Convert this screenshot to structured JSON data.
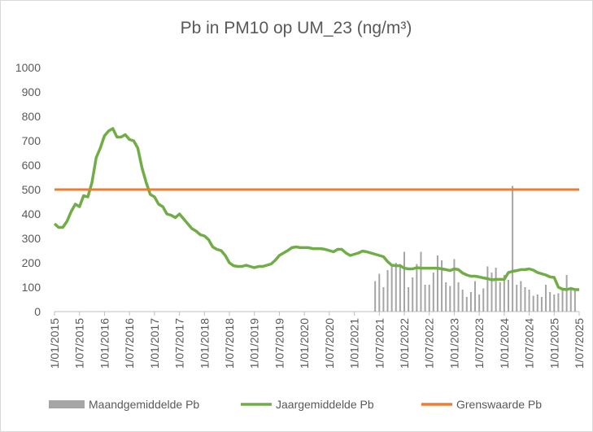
{
  "chart_data": {
    "type": "line",
    "title": "Pb in PM10 op UM_23 (ng/m³)",
    "ylim": [
      0,
      1000
    ],
    "yticks": [
      0,
      100,
      200,
      300,
      400,
      500,
      600,
      700,
      800,
      900,
      1000
    ],
    "xlim": [
      "2015-01-01",
      "2025-07-01"
    ],
    "xticks": [
      {
        "value": "2015-01-01",
        "label": "1/01/2015"
      },
      {
        "value": "2015-07-01",
        "label": "1/07/2015"
      },
      {
        "value": "2016-01-01",
        "label": "1/01/2016"
      },
      {
        "value": "2016-07-01",
        "label": "1/07/2016"
      },
      {
        "value": "2017-01-01",
        "label": "1/01/2017"
      },
      {
        "value": "2017-07-01",
        "label": "1/07/2017"
      },
      {
        "value": "2018-01-01",
        "label": "1/01/2018"
      },
      {
        "value": "2018-07-01",
        "label": "1/07/2018"
      },
      {
        "value": "2019-01-01",
        "label": "1/01/2019"
      },
      {
        "value": "2019-07-01",
        "label": "1/07/2019"
      },
      {
        "value": "2020-01-01",
        "label": "1/01/2020"
      },
      {
        "value": "2020-07-01",
        "label": "1/07/2020"
      },
      {
        "value": "2021-01-01",
        "label": "1/01/2021"
      },
      {
        "value": "2021-07-01",
        "label": "1/07/2021"
      },
      {
        "value": "2022-01-01",
        "label": "1/01/2022"
      },
      {
        "value": "2022-07-01",
        "label": "1/07/2022"
      },
      {
        "value": "2023-01-01",
        "label": "1/01/2023"
      },
      {
        "value": "2023-07-01",
        "label": "1/07/2023"
      },
      {
        "value": "2024-01-01",
        "label": "1/01/2024"
      },
      {
        "value": "2024-07-01",
        "label": "1/07/2024"
      },
      {
        "value": "2025-01-01",
        "label": "1/01/2025"
      },
      {
        "value": "2025-07-01",
        "label": "1/07/2025"
      }
    ],
    "series": [
      {
        "name": "Maandgemiddelde Pb",
        "type": "bar",
        "color": "#a5a5a5",
        "x": [
          "2021-06-01",
          "2021-07-01",
          "2021-08-01",
          "2021-09-01",
          "2021-10-01",
          "2021-11-01",
          "2021-12-01",
          "2022-01-01",
          "2022-02-01",
          "2022-03-01",
          "2022-04-01",
          "2022-05-01",
          "2022-06-01",
          "2022-07-01",
          "2022-08-01",
          "2022-09-01",
          "2022-10-01",
          "2022-11-01",
          "2022-12-01",
          "2023-01-01",
          "2023-02-01",
          "2023-03-01",
          "2023-04-01",
          "2023-05-01",
          "2023-06-01",
          "2023-07-01",
          "2023-08-01",
          "2023-09-01",
          "2023-10-01",
          "2023-11-01",
          "2023-12-01",
          "2024-01-01",
          "2024-02-01",
          "2024-03-01",
          "2024-04-01",
          "2024-05-01",
          "2024-06-01",
          "2024-07-01",
          "2024-08-01",
          "2024-09-01",
          "2024-10-01",
          "2024-11-01",
          "2024-12-01",
          "2025-01-01",
          "2025-02-01",
          "2025-03-01",
          "2025-04-01",
          "2025-05-01",
          "2025-06-01"
        ],
        "values": [
          125,
          155,
          100,
          170,
          185,
          200,
          195,
          245,
          100,
          140,
          195,
          245,
          110,
          110,
          160,
          230,
          210,
          120,
          105,
          215,
          120,
          90,
          60,
          80,
          125,
          70,
          95,
          185,
          160,
          180,
          120,
          150,
          130,
          515,
          110,
          125,
          100,
          90,
          65,
          70,
          60,
          110,
          80,
          70,
          75,
          90,
          150,
          100,
          85
        ]
      },
      {
        "name": "Jaargemiddelde Pb",
        "type": "line",
        "color": "#70ad47",
        "x": [
          "2015-01-01",
          "2015-02-01",
          "2015-03-01",
          "2015-04-01",
          "2015-05-01",
          "2015-06-01",
          "2015-07-01",
          "2015-08-01",
          "2015-09-01",
          "2015-10-01",
          "2015-11-01",
          "2015-12-01",
          "2016-01-01",
          "2016-02-01",
          "2016-03-01",
          "2016-04-01",
          "2016-05-01",
          "2016-06-01",
          "2016-07-01",
          "2016-08-01",
          "2016-09-01",
          "2016-10-01",
          "2016-11-01",
          "2016-12-01",
          "2017-01-01",
          "2017-02-01",
          "2017-03-01",
          "2017-04-01",
          "2017-05-01",
          "2017-06-01",
          "2017-07-01",
          "2017-08-01",
          "2017-09-01",
          "2017-10-01",
          "2017-11-01",
          "2017-12-01",
          "2018-01-01",
          "2018-02-01",
          "2018-03-01",
          "2018-04-01",
          "2018-05-01",
          "2018-06-01",
          "2018-07-01",
          "2018-08-01",
          "2018-09-01",
          "2018-10-01",
          "2018-11-01",
          "2018-12-01",
          "2019-01-01",
          "2019-02-01",
          "2019-03-01",
          "2019-04-01",
          "2019-05-01",
          "2019-06-01",
          "2019-07-01",
          "2019-08-01",
          "2019-09-01",
          "2019-10-01",
          "2019-11-01",
          "2019-12-01",
          "2020-01-01",
          "2020-02-01",
          "2020-03-01",
          "2020-04-01",
          "2020-05-01",
          "2020-06-01",
          "2020-07-01",
          "2020-08-01",
          "2020-09-01",
          "2020-10-01",
          "2020-11-01",
          "2020-12-01",
          "2021-01-01",
          "2021-02-01",
          "2021-03-01",
          "2021-04-01",
          "2021-05-01",
          "2021-06-01",
          "2021-07-01",
          "2021-08-01",
          "2021-09-01",
          "2021-10-01",
          "2021-11-01",
          "2021-12-01",
          "2022-01-01",
          "2022-02-01",
          "2022-03-01",
          "2022-04-01",
          "2022-05-01",
          "2022-06-01",
          "2022-07-01",
          "2022-08-01",
          "2022-09-01",
          "2022-10-01",
          "2022-11-01",
          "2022-12-01",
          "2023-01-01",
          "2023-02-01",
          "2023-03-01",
          "2023-04-01",
          "2023-05-01",
          "2023-06-01",
          "2023-07-01",
          "2023-08-01",
          "2023-09-01",
          "2023-10-01",
          "2023-11-01",
          "2023-12-01",
          "2024-01-01",
          "2024-02-01",
          "2024-03-01",
          "2024-04-01",
          "2024-05-01",
          "2024-06-01",
          "2024-07-01",
          "2024-08-01",
          "2024-09-01",
          "2024-10-01",
          "2024-11-01",
          "2024-12-01",
          "2025-01-01",
          "2025-02-01",
          "2025-03-01",
          "2025-04-01",
          "2025-05-01",
          "2025-06-01",
          "2025-07-01"
        ],
        "values": [
          360,
          345,
          345,
          370,
          410,
          440,
          430,
          475,
          470,
          530,
          630,
          670,
          720,
          740,
          750,
          715,
          715,
          725,
          705,
          700,
          670,
          590,
          530,
          480,
          470,
          440,
          430,
          400,
          395,
          385,
          400,
          380,
          360,
          340,
          330,
          315,
          310,
          295,
          265,
          255,
          250,
          230,
          200,
          188,
          185,
          185,
          190,
          185,
          180,
          185,
          185,
          190,
          195,
          210,
          230,
          240,
          250,
          262,
          265,
          262,
          262,
          262,
          258,
          258,
          258,
          255,
          250,
          245,
          255,
          255,
          240,
          230,
          235,
          240,
          248,
          245,
          240,
          235,
          230,
          225,
          205,
          190,
          188,
          188,
          178,
          175,
          175,
          180,
          178,
          178,
          178,
          178,
          178,
          175,
          172,
          168,
          175,
          172,
          158,
          150,
          145,
          145,
          142,
          138,
          135,
          130,
          132,
          132,
          132,
          160,
          165,
          168,
          172,
          172,
          175,
          170,
          160,
          155,
          150,
          142,
          140,
          100,
          92,
          90,
          95,
          90,
          90
        ]
      },
      {
        "name": "Grenswaarde Pb",
        "type": "line",
        "color": "#ed7d31",
        "x": [
          "2015-01-01",
          "2025-07-01"
        ],
        "values": [
          500,
          500
        ]
      }
    ]
  }
}
